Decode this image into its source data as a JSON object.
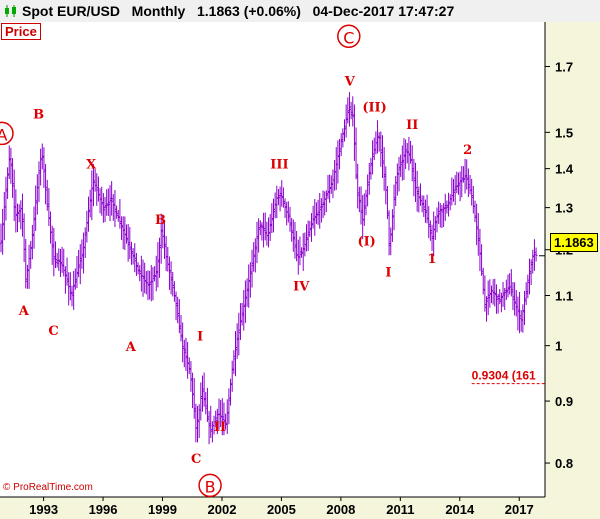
{
  "header": {
    "instrument": "Spot EUR/USD",
    "timeframe": "Monthly",
    "last": "1.1863 (+0.06%)",
    "datetime": "04-Dec-2017 17:47:27",
    "price_tag": "Price"
  },
  "copyright": "© ProRealTime.com",
  "last_price_label": "1.1863",
  "colors": {
    "candle": "#8800cc",
    "wave": "#dd0000",
    "axis_bg": "#f5f5dc"
  },
  "chart_data": {
    "type": "ohlc",
    "y_scale": "log",
    "ylim": [
      0.75,
      1.85
    ],
    "y_ticks": [
      0.8,
      0.9,
      1,
      1.1,
      1.2,
      1.3,
      1.4,
      1.5,
      1.7
    ],
    "y_tick_labels": [
      "0.8",
      "0.9",
      "1",
      "1.1",
      "1.2",
      "1.3",
      "1.4",
      "1.5",
      "1.7"
    ],
    "x_ticks": [
      1993,
      1996,
      1999,
      2002,
      2005,
      2008,
      2011,
      2014,
      2017
    ],
    "x_tick_labels": [
      "1993",
      "1996",
      "1999",
      "2002",
      "2005",
      "2008",
      "2011",
      "2014",
      "2017"
    ],
    "xlim": [
      1990.8,
      2018.3
    ],
    "anchors": [
      [
        1990.85,
        1.22
      ],
      [
        1991.3,
        1.44
      ],
      [
        1991.55,
        1.28
      ],
      [
        1991.9,
        1.3
      ],
      [
        1992.1,
        1.13
      ],
      [
        1992.4,
        1.22
      ],
      [
        1992.9,
        1.45
      ],
      [
        1993.2,
        1.3
      ],
      [
        1993.5,
        1.18
      ],
      [
        1993.9,
        1.17
      ],
      [
        1994.4,
        1.1
      ],
      [
        1995.0,
        1.2
      ],
      [
        1995.5,
        1.37
      ],
      [
        1996.0,
        1.3
      ],
      [
        1996.4,
        1.32
      ],
      [
        1996.9,
        1.26
      ],
      [
        1997.4,
        1.2
      ],
      [
        1997.8,
        1.15
      ],
      [
        1998.3,
        1.12
      ],
      [
        1998.7,
        1.15
      ],
      [
        1998.95,
        1.25
      ],
      [
        1999.2,
        1.18
      ],
      [
        1999.6,
        1.1
      ],
      [
        2000.0,
        1.0
      ],
      [
        2000.4,
        0.95
      ],
      [
        2000.7,
        0.85
      ],
      [
        2001.0,
        0.92
      ],
      [
        2001.4,
        0.85
      ],
      [
        2001.8,
        0.88
      ],
      [
        2002.2,
        0.86
      ],
      [
        2002.6,
        0.98
      ],
      [
        2003.0,
        1.06
      ],
      [
        2003.5,
        1.16
      ],
      [
        2003.9,
        1.26
      ],
      [
        2004.3,
        1.23
      ],
      [
        2004.8,
        1.33
      ],
      [
        2005.0,
        1.33
      ],
      [
        2005.4,
        1.27
      ],
      [
        2005.8,
        1.18
      ],
      [
        2006.1,
        1.2
      ],
      [
        2006.6,
        1.27
      ],
      [
        2007.0,
        1.3
      ],
      [
        2007.6,
        1.37
      ],
      [
        2008.0,
        1.47
      ],
      [
        2008.4,
        1.57
      ],
      [
        2008.6,
        1.55
      ],
      [
        2008.8,
        1.35
      ],
      [
        2009.1,
        1.27
      ],
      [
        2009.5,
        1.41
      ],
      [
        2009.9,
        1.5
      ],
      [
        2010.3,
        1.33
      ],
      [
        2010.45,
        1.2
      ],
      [
        2010.8,
        1.38
      ],
      [
        2011.3,
        1.45
      ],
      [
        2011.5,
        1.43
      ],
      [
        2011.8,
        1.34
      ],
      [
        2012.2,
        1.3
      ],
      [
        2012.6,
        1.23
      ],
      [
        2012.9,
        1.29
      ],
      [
        2013.3,
        1.3
      ],
      [
        2013.9,
        1.36
      ],
      [
        2014.3,
        1.38
      ],
      [
        2014.6,
        1.33
      ],
      [
        2015.0,
        1.2
      ],
      [
        2015.25,
        1.08
      ],
      [
        2015.6,
        1.11
      ],
      [
        2016.0,
        1.09
      ],
      [
        2016.5,
        1.12
      ],
      [
        2016.9,
        1.07
      ],
      [
        2017.1,
        1.05
      ],
      [
        2017.4,
        1.12
      ],
      [
        2017.7,
        1.19
      ],
      [
        2017.92,
        1.1863
      ]
    ],
    "annotations": [
      {
        "text": "A",
        "x": 1990.9,
        "y": 1.48,
        "circled": true
      },
      {
        "text": "B",
        "x": 1992.75,
        "y": 1.54
      },
      {
        "text": "A",
        "x": 1992.0,
        "y": 1.06
      },
      {
        "text": "C",
        "x": 1993.5,
        "y": 1.02
      },
      {
        "text": "X",
        "x": 1995.4,
        "y": 1.4
      },
      {
        "text": "A",
        "x": 1997.4,
        "y": 0.99
      },
      {
        "text": "B",
        "x": 1998.9,
        "y": 1.26
      },
      {
        "text": "I",
        "x": 2000.9,
        "y": 1.01
      },
      {
        "text": "C",
        "x": 2000.7,
        "y": 0.8
      },
      {
        "text": "II",
        "x": 2001.9,
        "y": 0.85
      },
      {
        "text": "B",
        "x": 2001.4,
        "y": 0.758,
        "circled": true
      },
      {
        "text": "III",
        "x": 2004.9,
        "y": 1.4
      },
      {
        "text": "IV",
        "x": 2006.0,
        "y": 1.11
      },
      {
        "text": "C",
        "x": 2008.4,
        "y": 1.78,
        "circled": true
      },
      {
        "text": "V",
        "x": 2008.45,
        "y": 1.64
      },
      {
        "text": "(II)",
        "x": 2009.7,
        "y": 1.56
      },
      {
        "text": "(I)",
        "x": 2009.3,
        "y": 1.21
      },
      {
        "text": "I",
        "x": 2010.4,
        "y": 1.14
      },
      {
        "text": "II",
        "x": 2011.6,
        "y": 1.51
      },
      {
        "text": "1",
        "x": 2012.6,
        "y": 1.17
      },
      {
        "text": "2",
        "x": 2014.4,
        "y": 1.44
      }
    ],
    "target": {
      "label": "0.9304 (161",
      "value": 0.9304,
      "x_start": 2014.6
    }
  }
}
